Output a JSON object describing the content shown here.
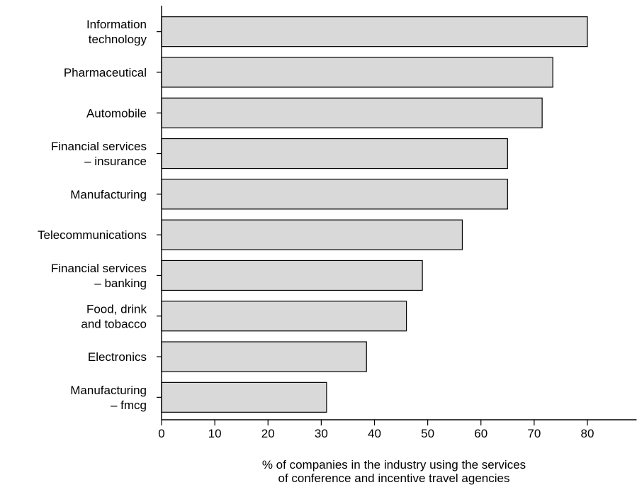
{
  "chart_data": {
    "type": "bar",
    "orientation": "horizontal",
    "categories": [
      [
        "Information",
        "technology"
      ],
      [
        "Pharmaceutical"
      ],
      [
        "Automobile"
      ],
      [
        "Financial services",
        "– insurance"
      ],
      [
        "Manufacturing"
      ],
      [
        "Telecommunications"
      ],
      [
        "Financial services",
        "– banking"
      ],
      [
        "Food, drink",
        "and tobacco"
      ],
      [
        "Electronics"
      ],
      [
        "Manufacturing",
        "– fmcg"
      ]
    ],
    "values": [
      80,
      73.5,
      71.5,
      65,
      65,
      56.5,
      49,
      46,
      38.5,
      31
    ],
    "xlim": [
      0,
      88
    ],
    "xticks": [
      "0",
      "10",
      "20",
      "30",
      "40",
      "50",
      "60",
      "70",
      "80"
    ],
    "xlabel": [
      "% of companies in the industry using the services",
      "of conference and incentive travel agencies"
    ],
    "ylabel": "",
    "title": "",
    "grid": false,
    "bar_color": "#d9d9d9"
  }
}
